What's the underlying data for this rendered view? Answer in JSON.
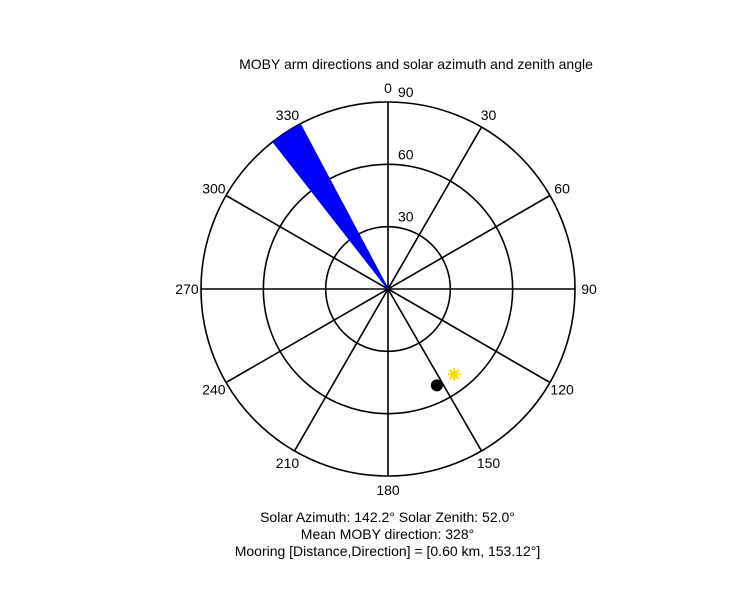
{
  "chart_data": {
    "type": "polar",
    "title": "MOBY arm directions and solar azimuth and zenith angle",
    "angle_labels": [
      "0",
      "30",
      "60",
      "90",
      "120",
      "150",
      "180",
      "210",
      "240",
      "270",
      "300",
      "330"
    ],
    "radial_ticks": [
      30,
      60,
      90
    ],
    "radial_tick_labels": [
      "30",
      "60",
      "90"
    ],
    "rlim": [
      0,
      90
    ],
    "theta_zero": "top",
    "theta_direction": "clockwise",
    "arm_fan": {
      "radius": 90,
      "min_direction": 322,
      "max_direction": 332,
      "line_count": 40,
      "color": "#0000ff"
    },
    "mooring_point": {
      "azimuth": 153.12,
      "zenith": 52,
      "color": "#000000"
    },
    "sun_point": {
      "azimuth": 142.2,
      "zenith": 52.0,
      "color": "#ffdd00"
    }
  },
  "captions": {
    "line1": "Solar Azimuth: 142.2°   Solar Zenith: 52.0°",
    "line2": "Mean MOBY direction: 328°",
    "line3": "Mooring [Distance,Direction] = [0.60 km, 153.12°]"
  }
}
